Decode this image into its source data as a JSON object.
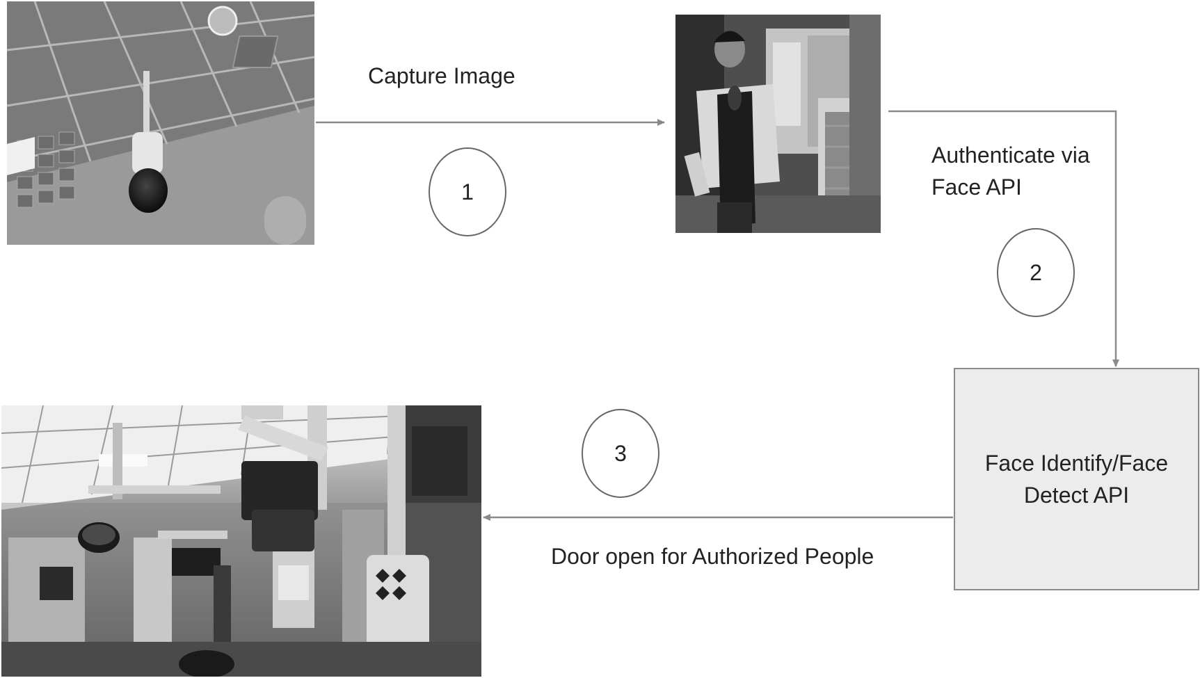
{
  "steps": [
    {
      "number": "1",
      "label": "Capture Image"
    },
    {
      "number": "2",
      "label_line1": "Authenticate via",
      "label_line2": "Face API"
    },
    {
      "number": "3",
      "label": "Door open for Authorized People"
    }
  ],
  "api_box": {
    "line1": "Face Identify/Face",
    "line2": "Detect API"
  },
  "images": [
    {
      "name": "ceiling-camera-photo"
    },
    {
      "name": "person-photo"
    },
    {
      "name": "operating-room-photo"
    }
  ]
}
